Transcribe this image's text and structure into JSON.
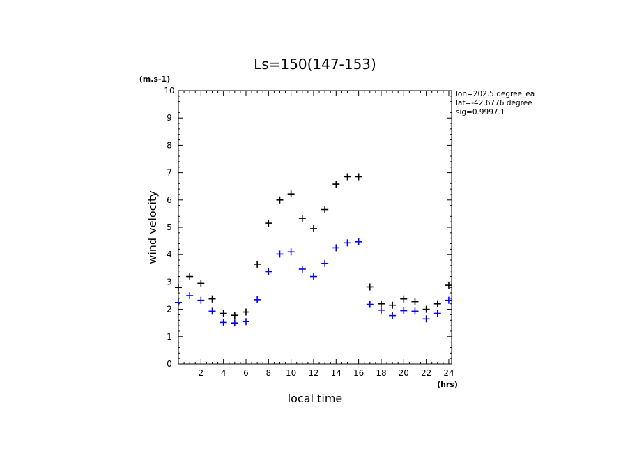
{
  "chart_data": {
    "type": "scatter",
    "title": "Ls=150(147-153)",
    "xlabel": "local time",
    "ylabel": "wind velocity",
    "y_unit": "(m.s-1)",
    "x_unit": "(hrs)",
    "xlim": [
      0,
      24.25
    ],
    "ylim": [
      0,
      10
    ],
    "x_ticks": [
      "2",
      "4",
      "6",
      "8",
      "10",
      "12",
      "14",
      "16",
      "18",
      "20",
      "22",
      "24"
    ],
    "y_ticks": [
      "0",
      "1",
      "2",
      "3",
      "4",
      "5",
      "6",
      "7",
      "8",
      "9",
      "10"
    ],
    "info": [
      "lon=202.5 degree_ea",
      "lat=-42.6776 degree",
      "sig=0.9997 1"
    ],
    "grid": false,
    "marker": "plus",
    "series": [
      {
        "color": "#000000",
        "points": [
          [
            0,
            2.8
          ],
          [
            1,
            3.2
          ],
          [
            2,
            2.95
          ],
          [
            3,
            2.38
          ],
          [
            4,
            1.85
          ],
          [
            5,
            1.78
          ],
          [
            6,
            1.9
          ],
          [
            7,
            3.65
          ],
          [
            8,
            5.15
          ],
          [
            9,
            6.0
          ],
          [
            10,
            6.22
          ],
          [
            11,
            5.33
          ],
          [
            12,
            4.95
          ],
          [
            13,
            5.65
          ],
          [
            14,
            6.58
          ],
          [
            15,
            6.85
          ],
          [
            16,
            6.85
          ],
          [
            17,
            2.82
          ],
          [
            18,
            2.2
          ],
          [
            19,
            2.15
          ],
          [
            20,
            2.38
          ],
          [
            21,
            2.28
          ],
          [
            22,
            2.0
          ],
          [
            23,
            2.2
          ],
          [
            24,
            2.88
          ]
        ]
      },
      {
        "color": "#0000ff",
        "points": [
          [
            0,
            2.25
          ],
          [
            1,
            2.5
          ],
          [
            2,
            2.33
          ],
          [
            3,
            1.93
          ],
          [
            4,
            1.52
          ],
          [
            5,
            1.5
          ],
          [
            6,
            1.55
          ],
          [
            7,
            2.35
          ],
          [
            8,
            3.38
          ],
          [
            9,
            4.02
          ],
          [
            10,
            4.1
          ],
          [
            11,
            3.47
          ],
          [
            12,
            3.2
          ],
          [
            13,
            3.68
          ],
          [
            14,
            4.25
          ],
          [
            15,
            4.43
          ],
          [
            16,
            4.47
          ],
          [
            17,
            2.18
          ],
          [
            18,
            1.97
          ],
          [
            19,
            1.77
          ],
          [
            20,
            1.95
          ],
          [
            21,
            1.93
          ],
          [
            22,
            1.65
          ],
          [
            23,
            1.85
          ],
          [
            24,
            2.33
          ]
        ]
      }
    ]
  }
}
